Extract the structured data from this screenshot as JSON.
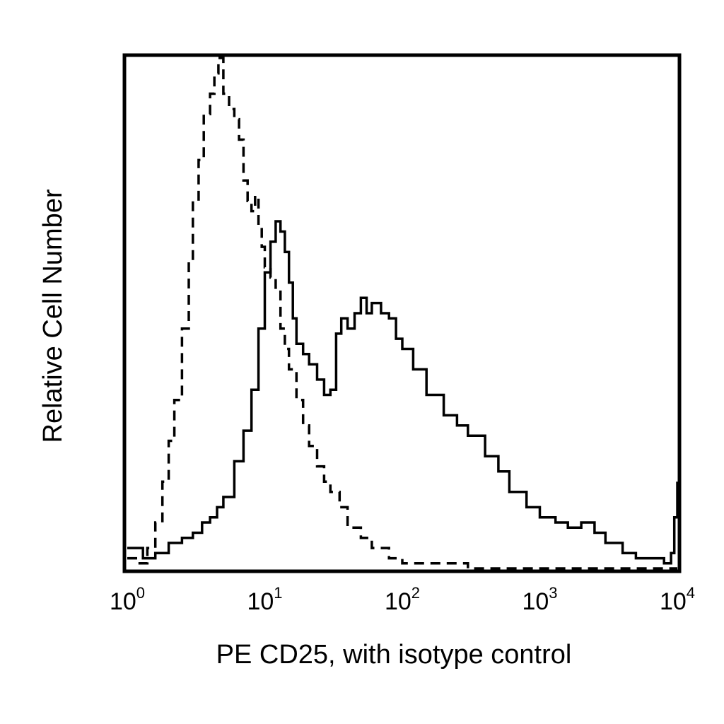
{
  "chart_data": {
    "type": "line",
    "title": "",
    "xlabel": "PE CD25, with isotype control",
    "ylabel": "Relative Cell Number",
    "x_scale": "log",
    "xlim": [
      1,
      10000
    ],
    "ylim": [
      0,
      100
    ],
    "grid": false,
    "legend": "none",
    "x_ticks": [
      {
        "base": "10",
        "exp": "0",
        "value": 1
      },
      {
        "base": "10",
        "exp": "1",
        "value": 10
      },
      {
        "base": "10",
        "exp": "2",
        "value": 100
      },
      {
        "base": "10",
        "exp": "3",
        "value": 1000
      },
      {
        "base": "10",
        "exp": "4",
        "value": 10000
      }
    ],
    "series": [
      {
        "style": "dashed",
        "color": "#000000",
        "x": [
          1.0,
          1.2,
          1.4,
          1.6,
          1.8,
          2.0,
          2.2,
          2.5,
          2.8,
          3.0,
          3.3,
          3.6,
          4.0,
          4.3,
          4.6,
          5.0,
          5.5,
          6.0,
          6.5,
          7.0,
          7.5,
          8.0,
          8.5,
          9.0,
          9.5,
          10.0,
          11.0,
          12.0,
          13.0,
          14.0,
          15.0,
          17.0,
          19.0,
          21.0,
          24.0,
          27.0,
          30.0,
          35.0,
          40.0,
          50.0,
          60.0,
          80.0,
          100.0,
          150.0,
          200.0,
          300.0,
          500.0,
          1000.0,
          2000.0,
          5000.0,
          10000.0
        ],
        "y": [
          2,
          1,
          4,
          9,
          17,
          25,
          33,
          47,
          60,
          72,
          80,
          89,
          93,
          97,
          100,
          93,
          90,
          88,
          84,
          76,
          72,
          70,
          73,
          67,
          63,
          59,
          57,
          55,
          47,
          43,
          39,
          33,
          28,
          24,
          20,
          17,
          15,
          12,
          8,
          6,
          4,
          2,
          1,
          1,
          1,
          0,
          0,
          0,
          0,
          0,
          0
        ]
      },
      {
        "style": "solid",
        "color": "#000000",
        "x": [
          1.0,
          1.3,
          1.6,
          2.0,
          2.5,
          3.0,
          3.5,
          4.0,
          4.5,
          5.0,
          6.0,
          7.0,
          8.0,
          9.0,
          10.0,
          11.0,
          12.0,
          13.0,
          14.0,
          15.0,
          16.0,
          17.0,
          19.0,
          21.0,
          24.0,
          27.0,
          30.0,
          33.0,
          36.0,
          40.0,
          45.0,
          50.0,
          55.0,
          60.0,
          70.0,
          80.0,
          90.0,
          100.0,
          120.0,
          150.0,
          200.0,
          250.0,
          300.0,
          400.0,
          500.0,
          600.0,
          800.0,
          1000.0,
          1300.0,
          1600.0,
          2000.0,
          2500.0,
          3000.0,
          4000.0,
          5000.0,
          6000.0,
          7000.0,
          8000.0,
          9000.0,
          9500.0,
          10000.0
        ],
        "y": [
          4,
          2,
          3,
          5,
          6,
          7,
          9,
          10,
          12,
          14,
          21,
          27,
          35,
          47,
          58,
          64,
          68,
          66,
          62,
          56,
          49,
          44,
          42,
          40,
          37,
          34,
          35,
          46,
          49,
          47,
          50,
          53,
          50,
          52,
          50,
          49,
          45,
          43,
          39,
          34,
          30,
          28,
          26,
          22,
          19,
          15,
          12,
          10,
          9,
          8,
          9,
          7,
          5,
          3,
          2,
          2,
          2,
          1,
          3,
          10,
          17
        ]
      }
    ]
  }
}
